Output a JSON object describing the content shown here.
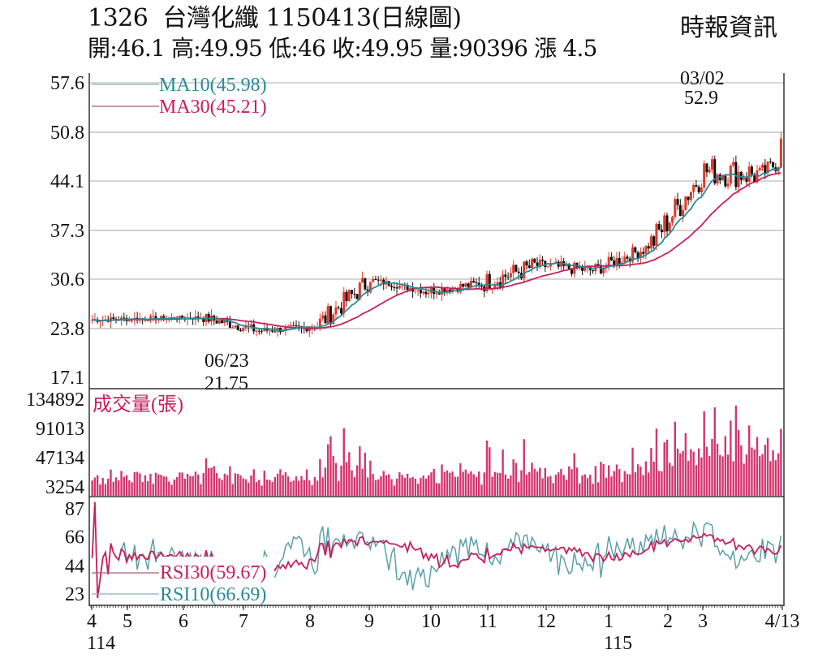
{
  "header": {
    "title": "1326  台灣化纖 1150413(日線圖)",
    "quote_line": "開:46.1 高:49.95 低:46 收:49.95 量:90396 漲 4.5",
    "source": "時報資訊"
  },
  "quote": {
    "stock_code": "1326",
    "stock_name": "台灣化纖",
    "date": "1150413",
    "chart_kind": "日線圖",
    "open": 46.1,
    "high": 49.95,
    "low": 46,
    "close": 49.95,
    "volume": 90396,
    "change": 4.5
  },
  "colors": {
    "ma10": "#2a8a96",
    "ma30": "#c8205a",
    "up_candle": "#e0392b",
    "down_candle": "#111111",
    "volume_bar": "#d4356f",
    "rsi10": "#4f9aa6",
    "rsi30": "#c8205a",
    "grid": "#bdbdbd"
  },
  "legends": {
    "ma10": "MA10(45.98)",
    "ma30": "MA30(45.21)",
    "volume": "成交量(張)",
    "rsi30": "RSI30(59.67)",
    "rsi10": "RSI10(66.69)"
  },
  "annotations": {
    "high_date": "03/02",
    "high_value": "52.9",
    "low_date": "06/23",
    "low_value": "21.75"
  },
  "chart_data": [
    {
      "type": "candlestick",
      "title": "1326 台灣化纖 1150413(日線圖)",
      "ylabel": "",
      "ylim": [
        17.1,
        57.6
      ],
      "yticks": [
        "57.6",
        "50.8",
        "44.1",
        "37.3",
        "30.6",
        "23.8",
        "17.1"
      ],
      "grid": true,
      "x_month_labels": [
        "4",
        "5",
        "6",
        "7",
        "8",
        "9",
        "10",
        "11",
        "12",
        "1",
        "2",
        "3",
        "4/13"
      ],
      "x_year_labels": [
        {
          "at": "4",
          "label": "114"
        },
        {
          "at": "1",
          "label": "115"
        }
      ],
      "monthly_approx": [
        {
          "month": "114/04",
          "open": 25.0,
          "high": 26.3,
          "low": 24.2,
          "close": 25.2
        },
        {
          "month": "114/05",
          "open": 25.2,
          "high": 26.5,
          "low": 24.6,
          "close": 25.3
        },
        {
          "month": "114/06",
          "open": 25.3,
          "high": 25.8,
          "low": 21.75,
          "close": 23.5
        },
        {
          "month": "114/07",
          "open": 23.5,
          "high": 24.9,
          "low": 22.0,
          "close": 24.0
        },
        {
          "month": "114/08",
          "open": 24.0,
          "high": 32.2,
          "low": 23.8,
          "close": 30.5
        },
        {
          "month": "114/09",
          "open": 30.5,
          "high": 31.0,
          "low": 28.5,
          "close": 28.9
        },
        {
          "month": "114/10",
          "open": 28.9,
          "high": 31.5,
          "low": 27.6,
          "close": 30.0
        },
        {
          "month": "114/11",
          "open": 30.0,
          "high": 35.8,
          "low": 27.8,
          "close": 32.5
        },
        {
          "month": "114/12",
          "open": 32.5,
          "high": 36.0,
          "low": 31.0,
          "close": 31.8
        },
        {
          "month": "115/01",
          "open": 31.8,
          "high": 35.5,
          "low": 30.0,
          "close": 35.0
        },
        {
          "month": "115/02",
          "open": 35.0,
          "high": 46.6,
          "low": 34.8,
          "close": 45.5
        },
        {
          "month": "115/03",
          "open": 45.5,
          "high": 52.9,
          "low": 41.0,
          "close": 45.0
        },
        {
          "month": "115/04",
          "open": 45.0,
          "high": 50.8,
          "low": 44.0,
          "close": 49.95
        }
      ],
      "series": [
        {
          "name": "MA10",
          "last": 45.98
        },
        {
          "name": "MA30",
          "last": 45.21
        }
      ],
      "extremes": {
        "high": {
          "date": "03/02",
          "value": 52.9
        },
        "low": {
          "date": "06/23",
          "value": 21.75
        }
      }
    },
    {
      "type": "bar",
      "title": "成交量(張)",
      "yticks": [
        "134892",
        "91013",
        "47134",
        "3254"
      ],
      "ylim": [
        3254,
        134892
      ],
      "peaks_approx": [
        {
          "month": "114/08",
          "value": 75000
        },
        {
          "month": "114/08",
          "value": 82000
        },
        {
          "month": "114/11",
          "value": 100000
        },
        {
          "month": "115/02",
          "value": 112000
        },
        {
          "month": "115/03",
          "value": 134892
        },
        {
          "month": "115/04",
          "value": 129000
        }
      ],
      "last": 90396
    },
    {
      "type": "line",
      "title": "RSI",
      "yticks": [
        "87",
        "66",
        "44",
        "23"
      ],
      "ylim": [
        23,
        87
      ],
      "series": [
        {
          "name": "RSI30",
          "last": 59.67
        },
        {
          "name": "RSI10",
          "last": 66.69
        }
      ]
    }
  ]
}
